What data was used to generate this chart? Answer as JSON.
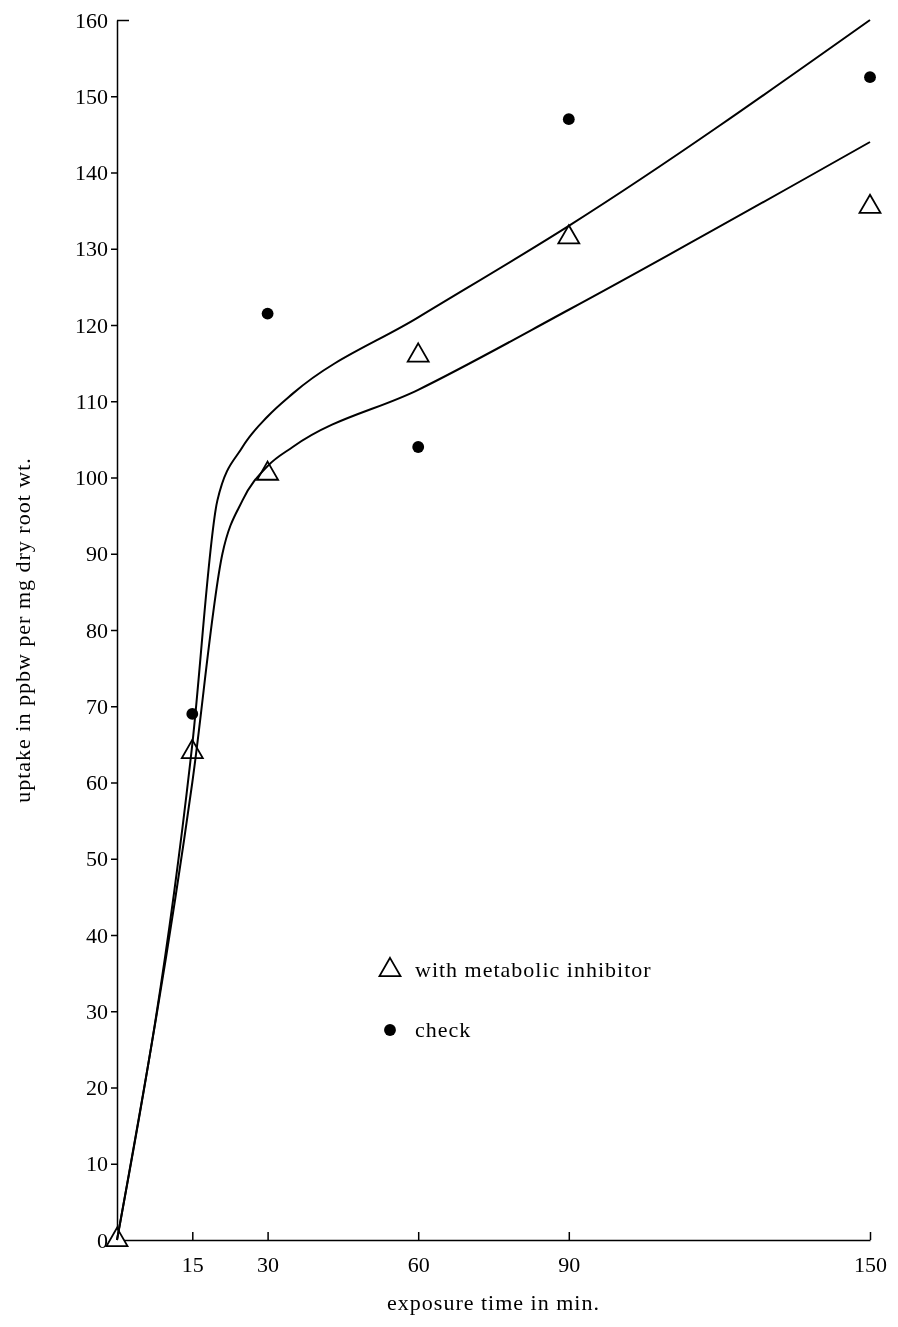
{
  "chart_data": {
    "type": "scatter",
    "xlabel": "exposure time in min.",
    "ylabel": "uptake in ppbw per mg dry root wt.",
    "xlim": [
      0,
      150
    ],
    "xticks": [
      15,
      30,
      60,
      90,
      150
    ],
    "ylim": [
      0,
      160
    ],
    "yticks": [
      0,
      10,
      20,
      30,
      40,
      50,
      60,
      70,
      80,
      90,
      100,
      110,
      120,
      130,
      140,
      150,
      160
    ],
    "legend": "right",
    "grid": false,
    "series": [
      {
        "name": "with metabolic inhibitor",
        "marker": "triangle",
        "color": "#000000",
        "x": [
          0,
          15,
          30,
          60,
          90,
          150
        ],
        "values": [
          0,
          64,
          100.5,
          116,
          131.5,
          135.5
        ]
      },
      {
        "name": "check",
        "marker": "circle",
        "color": "#000000",
        "x": [
          15,
          30,
          60,
          90,
          150
        ],
        "values": [
          69,
          121.5,
          104,
          147,
          152.5
        ]
      },
      {
        "type": "line",
        "color": "#000000",
        "x": [
          0,
          15,
          20,
          25,
          30,
          35,
          60,
          90,
          150
        ],
        "values": [
          0,
          65,
          97,
          104,
          108,
          111,
          121,
          133,
          160
        ]
      },
      {
        "type": "line",
        "color": "#000000",
        "x": [
          0,
          15,
          21,
          25,
          30,
          35,
          60,
          90,
          150
        ],
        "values": [
          0,
          60,
          90,
          97,
          101.5,
          104,
          111.5,
          122,
          144
        ]
      }
    ]
  }
}
